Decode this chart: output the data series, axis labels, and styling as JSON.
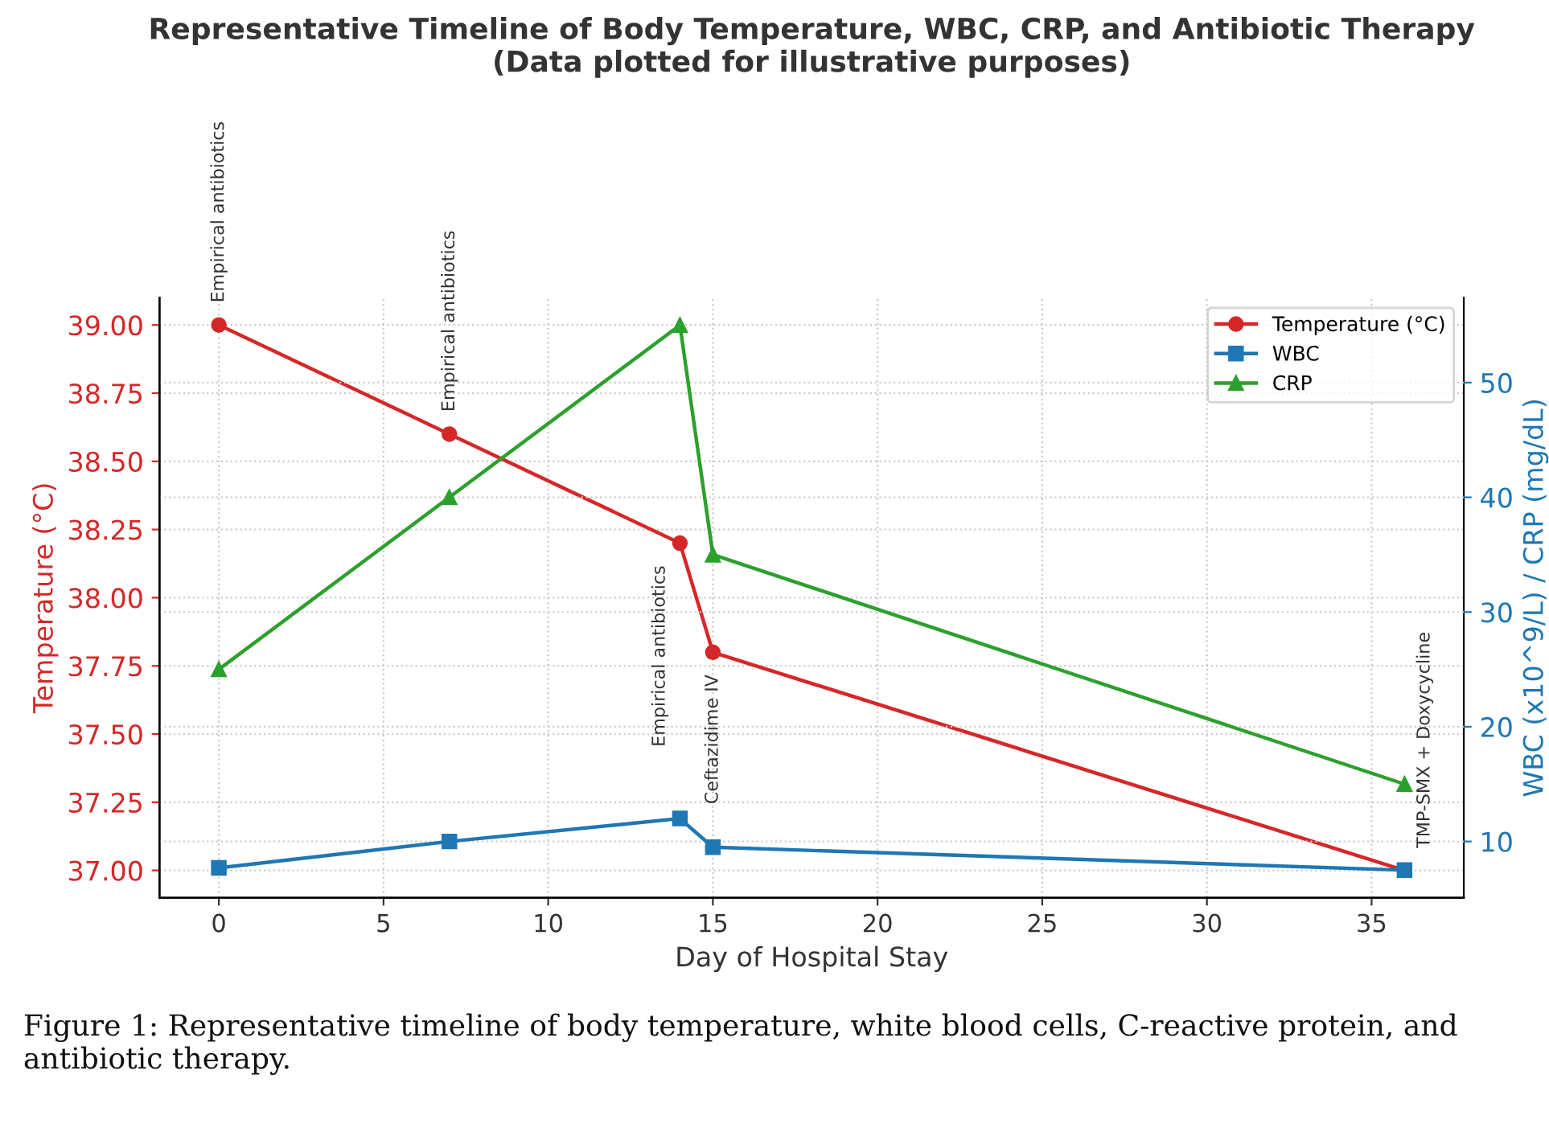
{
  "chart_data": {
    "type": "line",
    "title": "Representative Timeline of Body Temperature, WBC, CRP, and Antibiotic Therapy\n(Data plotted for illustrative purposes)",
    "xlabel": "Day of Hospital Stay",
    "ylabel": "Temperature (°C)",
    "y2label": "WBC (x10^9/L) / CRP (mg/dL)",
    "x": [
      0,
      7,
      14,
      15,
      36
    ],
    "series": [
      {
        "name": "Temperature (°C)",
        "color": "#d62728",
        "marker": "circle",
        "values": [
          39.0,
          38.6,
          38.2,
          37.8,
          37.0
        ]
      },
      {
        "name": "WBC",
        "color": "#1f77b4",
        "marker": "square",
        "axis": "y2",
        "values": [
          7.7,
          10,
          12,
          9.5,
          7.5
        ]
      },
      {
        "name": "CRP",
        "color": "#2ca02c",
        "marker": "triangle",
        "axis": "y2",
        "values": [
          25,
          40,
          55,
          35,
          15
        ]
      }
    ],
    "xlim": [
      -1.8,
      37.8
    ],
    "xticks": [
      0,
      5,
      10,
      15,
      20,
      25,
      30,
      35
    ],
    "ylim": [
      36.9,
      39.1
    ],
    "yticks": [
      {
        "value": 37.0,
        "label": "37.00"
      },
      {
        "value": 37.25,
        "label": "37.25"
      },
      {
        "value": 37.5,
        "label": "37.50"
      },
      {
        "value": 37.75,
        "label": "37.75"
      },
      {
        "value": 38.0,
        "label": "38.00"
      },
      {
        "value": 38.25,
        "label": "38.25"
      },
      {
        "value": 38.5,
        "label": "38.50"
      },
      {
        "value": 38.75,
        "label": "38.75"
      },
      {
        "value": 39.0,
        "label": "39.00"
      }
    ],
    "y2lim": [
      5.1,
      57.4
    ],
    "y2ticks": [
      10,
      20,
      30,
      40,
      50
    ],
    "grid": true,
    "legend": "top right",
    "line_style": "solid",
    "annotations": [
      {
        "text": "Empirical antibiotics",
        "x": 0,
        "y": 39.0
      },
      {
        "text": "Empirical antibiotics",
        "x": 7,
        "y": 38.6
      },
      {
        "text": "Empirical antibiotics",
        "x": 14,
        "y": 38.2
      },
      {
        "text": "Ceftazidime IV",
        "x": 15,
        "y": 37.8
      },
      {
        "text": "TMP-SMX + Doxycycline",
        "x": 36,
        "y": 37.0
      },
      "Figure 1: Representative timeline of body temperature, white blood cells, C-reactive protein, and antibiotic therapy."
    ]
  }
}
